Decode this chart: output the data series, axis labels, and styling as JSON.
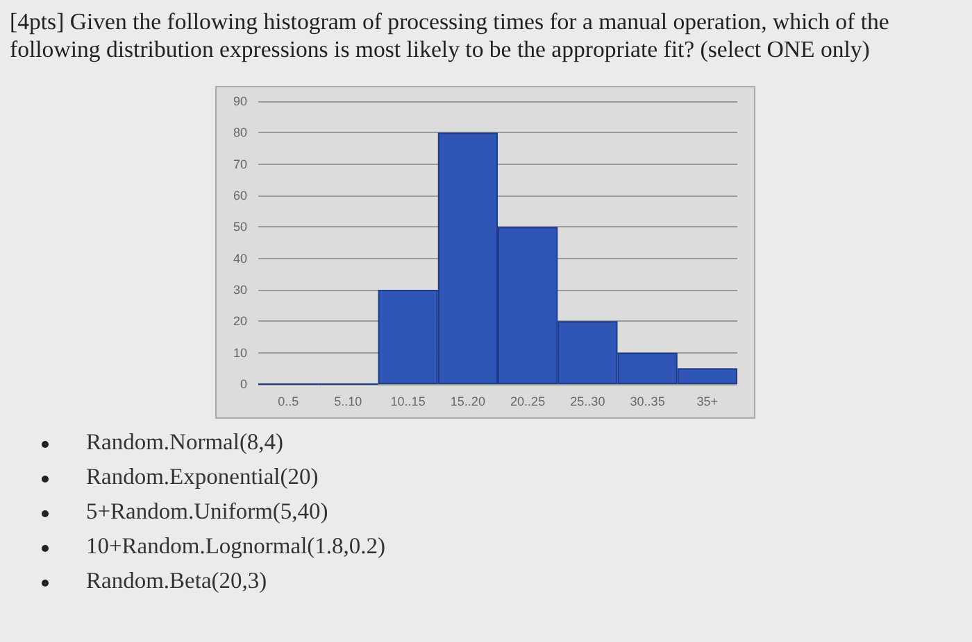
{
  "chart_data": {
    "type": "bar",
    "title": "[4pts] Given the following histogram of processing times for a manual operation, which of the following distribution expressions is most likely to be the appropriate fit? (select ONE only)",
    "categories": [
      "0..5",
      "5..10",
      "10..15",
      "15..20",
      "20..25",
      "25..30",
      "30..35",
      "35+"
    ],
    "values": [
      0,
      0,
      30,
      80,
      50,
      20,
      10,
      5
    ],
    "color": "#2f56b6",
    "ylim": [
      0,
      90
    ],
    "yticks": [
      0,
      10,
      20,
      30,
      40,
      50,
      60,
      70,
      80,
      90
    ],
    "grid": "y",
    "annotations": [
      "Random.Normal(8,4)",
      "Random.Exponential(20)",
      "5+Random.Uniform(5,40)",
      "10+Random.Lognormal(1.8,0.2)",
      "Random.Beta(20,3)"
    ]
  }
}
